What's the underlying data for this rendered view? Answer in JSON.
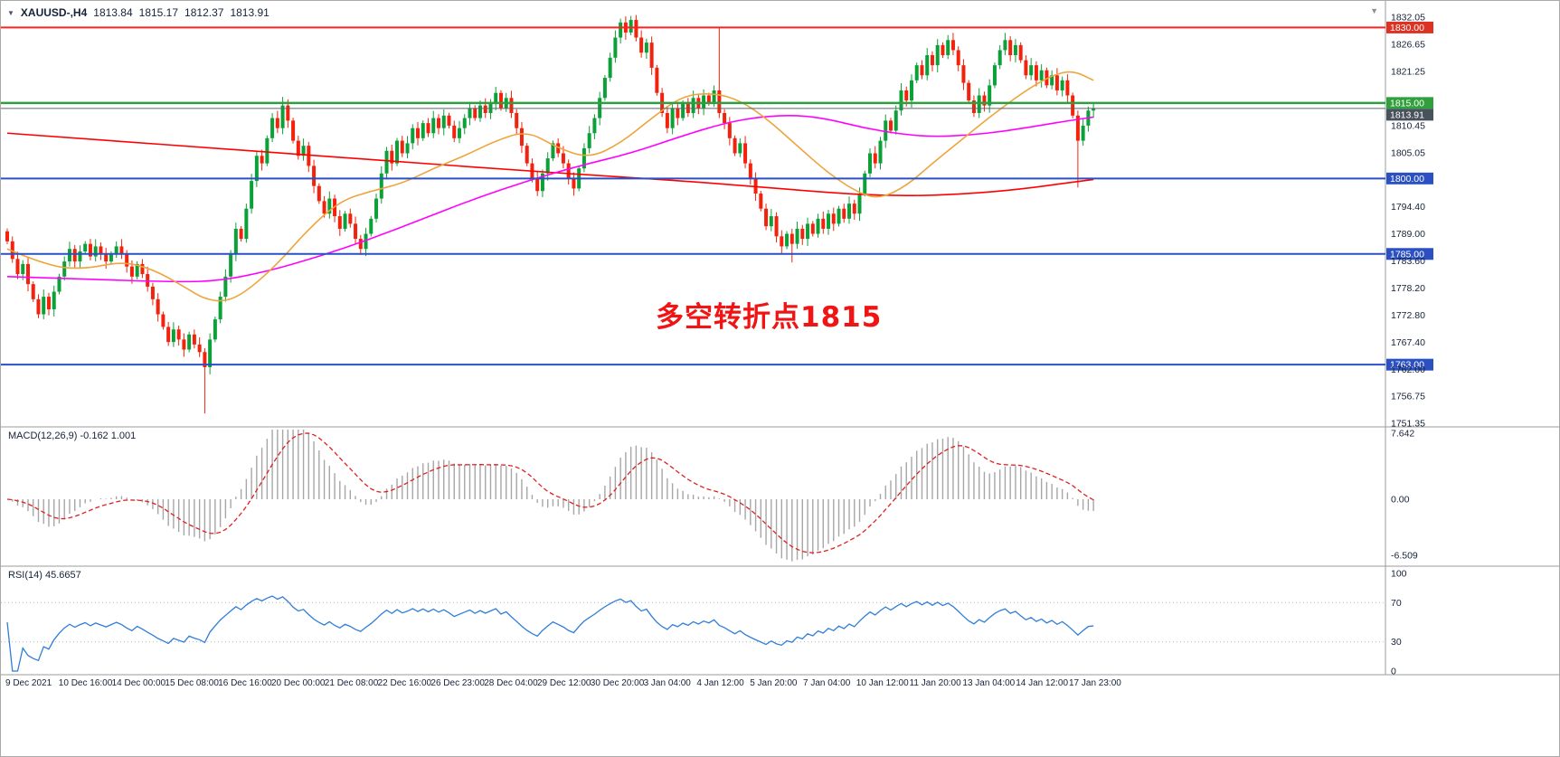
{
  "header": {
    "collapse_icon": "▼",
    "symbol_period": "XAUUSD-,H4",
    "open": "1813.84",
    "high": "1815.17",
    "low": "1812.37",
    "close": "1813.91"
  },
  "annotation": {
    "text": "多空转折点1815",
    "color": "#f01414"
  },
  "colors": {
    "bull": "#0CA138",
    "bear": "#F3220D",
    "ma_red": "#FF0000",
    "ma_magenta": "#FF00FF",
    "ma_orange": "#EDA53C",
    "level_red": "#FF2020",
    "level_green": "#2F9E41",
    "level_blue": "#2A50C2",
    "current_price": "#5A646E",
    "macd_hist": "#A6A6A6",
    "macd_signal": "#E02020",
    "rsi_line": "#2F7ED8",
    "rsi_levels": "#b8bdc4",
    "axis_text": "#152238",
    "separator": "#9b9b9b"
  },
  "price_axis": {
    "labels": [
      {
        "text": "1832.05",
        "price": 1832.05
      },
      {
        "text": "1830.00",
        "price": 1830.0,
        "badge": "#DD3222"
      },
      {
        "text": "1826.65",
        "price": 1826.65
      },
      {
        "text": "1821.25",
        "price": 1821.25
      },
      {
        "text": "1815.00",
        "price": 1815.0,
        "badge": "#2FA03C"
      },
      {
        "text": "1813.91",
        "price": 1813.91,
        "badge": "#48525C"
      },
      {
        "text": "1810.45",
        "price": 1810.45
      },
      {
        "text": "1805.05",
        "price": 1805.05
      },
      {
        "text": "1800.00",
        "price": 1800.0,
        "badge": "#2A50C2"
      },
      {
        "text": "1794.40",
        "price": 1794.4
      },
      {
        "text": "1789.00",
        "price": 1789.0
      },
      {
        "text": "1785.00",
        "price": 1785.0,
        "badge": "#2A50C2"
      },
      {
        "text": "1783.60",
        "price": 1783.6
      },
      {
        "text": "1778.20",
        "price": 1778.2
      },
      {
        "text": "1772.80",
        "price": 1772.8
      },
      {
        "text": "1767.40",
        "price": 1767.4
      },
      {
        "text": "1763.00",
        "price": 1763.0,
        "badge": "#2A50C2"
      },
      {
        "text": "1762.00",
        "price": 1762.0
      },
      {
        "text": "1756.75",
        "price": 1756.75
      },
      {
        "text": "1751.35",
        "price": 1751.35
      }
    ]
  },
  "time_axis": {
    "labels": [
      "9 Dec 2021",
      "10 Dec 16:00",
      "14 Dec 00:00",
      "15 Dec 08:00",
      "16 Dec 16:00",
      "20 Dec 00:00",
      "21 Dec 08:00",
      "22 Dec 16:00",
      "26 Dec 23:00",
      "28 Dec 04:00",
      "29 Dec 12:00",
      "30 Dec 20:00",
      "3 Jan 04:00",
      "4 Jan 12:00",
      "5 Jan 20:00",
      "7 Jan 04:00",
      "10 Jan 12:00",
      "11 Jan 20:00",
      "13 Jan 04:00",
      "14 Jan 12:00",
      "17 Jan 23:00"
    ]
  },
  "levels": [
    {
      "price": 1830.0,
      "color_key": "level_red",
      "width": 2
    },
    {
      "price": 1815.0,
      "color_key": "level_green",
      "width": 2.5
    },
    {
      "price": 1813.91,
      "color_key": "current_price",
      "width": 1
    },
    {
      "price": 1800.0,
      "color_key": "level_blue",
      "width": 2
    },
    {
      "price": 1785.0,
      "color_key": "level_blue",
      "width": 2
    },
    {
      "price": 1763.0,
      "color_key": "level_blue",
      "width": 2
    }
  ],
  "panels": {
    "macd": {
      "label": "MACD(12,26,9)",
      "values": "-0.162 1.001",
      "fast": 12,
      "slow": 26,
      "signal": 9,
      "axis": [
        {
          "text": "7.642",
          "value": 7.642
        },
        {
          "text": "0.00",
          "value": 0
        },
        {
          "text": "-6.509",
          "value": -6.509
        }
      ]
    },
    "rsi": {
      "label": "RSI(14)",
      "value": "45.6657",
      "period": 14,
      "axis": [
        {
          "text": "100",
          "value": 100
        },
        {
          "text": "70",
          "value": 70
        },
        {
          "text": "30",
          "value": 30
        },
        {
          "text": "0",
          "value": 0
        }
      ],
      "level_lines": [
        30,
        70
      ]
    }
  },
  "chart_data": {
    "type": "candlestick",
    "title": "XAUUSD- H4",
    "ylim": [
      1751.35,
      1832.05
    ],
    "x_labels": [
      "9 Dec 2021",
      "10 Dec 16:00",
      "14 Dec 00:00",
      "15 Dec 08:00",
      "16 Dec 16:00",
      "20 Dec 00:00",
      "21 Dec 08:00",
      "22 Dec 16:00",
      "26 Dec 23:00",
      "28 Dec 04:00",
      "29 Dec 12:00",
      "30 Dec 20:00",
      "3 Jan 04:00",
      "4 Jan 12:00",
      "5 Jan 20:00",
      "7 Jan 04:00",
      "10 Jan 12:00",
      "11 Jan 20:00",
      "13 Jan 04:00",
      "14 Jan 12:00",
      "17 Jan 23:00"
    ],
    "candles": {
      "first_open": 1789.5,
      "default_wick": 1.1,
      "closes": [
        1787.5,
        1784,
        1781,
        1783,
        1779,
        1776,
        1773,
        1776.5,
        1774,
        1777.5,
        1780.5,
        1783.5,
        1786,
        1783.5,
        1785.5,
        1787,
        1784.5,
        1786.5,
        1785,
        1783.5,
        1785,
        1786.5,
        1785,
        1782.5,
        1780.5,
        1783,
        1781,
        1778.5,
        1776,
        1773,
        1770.5,
        1767.5,
        1770,
        1768,
        1766,
        1769,
        1767,
        1765.5,
        1762.5,
        1768,
        1772,
        1776.5,
        1780.5,
        1785,
        1790,
        1788,
        1794,
        1799.5,
        1804.5,
        1803,
        1808,
        1812,
        1810,
        1814.5,
        1811.5,
        1807.5,
        1804.5,
        1806.5,
        1802.5,
        1798.5,
        1795.5,
        1793,
        1796,
        1792.5,
        1790,
        1793,
        1791,
        1788,
        1786,
        1789,
        1792,
        1796,
        1801,
        1805.5,
        1803,
        1807.5,
        1805,
        1807,
        1810,
        1808,
        1811,
        1809,
        1812,
        1810,
        1812.5,
        1810.5,
        1808,
        1810,
        1812,
        1814,
        1812,
        1814.5,
        1813,
        1815,
        1817,
        1814,
        1816,
        1813,
        1810,
        1806.5,
        1803,
        1800,
        1797.5,
        1801,
        1804,
        1807,
        1805,
        1803,
        1800,
        1798,
        1802,
        1806,
        1809,
        1812,
        1816,
        1820,
        1824,
        1828,
        1831,
        1829,
        1831.5,
        1828,
        1825,
        1827,
        1822,
        1817,
        1813,
        1810,
        1814,
        1812,
        1815,
        1813,
        1816,
        1814,
        1816.5,
        1815,
        1817.5,
        1813,
        1811,
        1808,
        1805,
        1807,
        1803,
        1800,
        1797,
        1794,
        1790.5,
        1792.5,
        1788.5,
        1786.5,
        1789,
        1787,
        1790,
        1788,
        1791,
        1789,
        1792,
        1790,
        1793,
        1791,
        1794,
        1792,
        1795,
        1793,
        1797,
        1801,
        1805,
        1803,
        1807.5,
        1811.5,
        1809.5,
        1813.5,
        1817.5,
        1815.5,
        1819.5,
        1822.5,
        1820.5,
        1824.5,
        1822.5,
        1826.5,
        1824.5,
        1827.5,
        1825.5,
        1822.5,
        1819,
        1815.5,
        1813,
        1816.5,
        1814.5,
        1818.5,
        1822.5,
        1825.5,
        1827.5,
        1824.5,
        1826.5,
        1823.5,
        1820.5,
        1822.5,
        1819.5,
        1821.5,
        1818.5,
        1820.5,
        1817.5,
        1819.5,
        1816.5,
        1812.5,
        1807.5,
        1810.5,
        1813.5,
        1813.91
      ],
      "wick_overrides": {
        "38": {
          "low": 1753.3
        },
        "53": {
          "high": 1816.2
        },
        "120": {
          "high": 1832.3
        },
        "137": {
          "high": 1830.0
        },
        "151": {
          "low": 1783.3
        },
        "206": {
          "low": 1798.2
        }
      }
    },
    "moving_averages": [
      {
        "name": "slow",
        "color_key": "ma_red",
        "points": [
          [
            0,
            1809
          ],
          [
            20,
            1807.5
          ],
          [
            40,
            1806
          ],
          [
            60,
            1804.5
          ],
          [
            80,
            1803
          ],
          [
            100,
            1801.5
          ],
          [
            115,
            1800.5
          ],
          [
            130,
            1799.5
          ],
          [
            145,
            1798.3
          ],
          [
            158,
            1797.2
          ],
          [
            168,
            1796.6
          ],
          [
            178,
            1796.6
          ],
          [
            188,
            1797.2
          ],
          [
            196,
            1798
          ],
          [
            203,
            1799
          ],
          [
            209,
            1799.8
          ]
        ]
      },
      {
        "name": "medium",
        "color_key": "ma_magenta",
        "points": [
          [
            0,
            1780.5
          ],
          [
            15,
            1780
          ],
          [
            30,
            1779.5
          ],
          [
            40,
            1779.5
          ],
          [
            50,
            1781.5
          ],
          [
            60,
            1784.5
          ],
          [
            70,
            1788
          ],
          [
            80,
            1792
          ],
          [
            90,
            1796
          ],
          [
            100,
            1799.5
          ],
          [
            110,
            1802.5
          ],
          [
            120,
            1805
          ],
          [
            130,
            1808.5
          ],
          [
            138,
            1811
          ],
          [
            145,
            1812.3
          ],
          [
            152,
            1812.6
          ],
          [
            158,
            1811.8
          ],
          [
            165,
            1810
          ],
          [
            172,
            1808.8
          ],
          [
            178,
            1808.3
          ],
          [
            185,
            1808.6
          ],
          [
            192,
            1809.4
          ],
          [
            199,
            1810.6
          ],
          [
            205,
            1811.6
          ],
          [
            209,
            1812.2
          ]
        ]
      },
      {
        "name": "fast",
        "color_key": "ma_orange",
        "points": [
          [
            0,
            1786
          ],
          [
            8,
            1782.5
          ],
          [
            15,
            1782
          ],
          [
            22,
            1783.5
          ],
          [
            28,
            1782
          ],
          [
            34,
            1778.5
          ],
          [
            38,
            1776
          ],
          [
            42,
            1775.5
          ],
          [
            46,
            1777.5
          ],
          [
            52,
            1783
          ],
          [
            58,
            1790
          ],
          [
            64,
            1795.5
          ],
          [
            70,
            1797.5
          ],
          [
            76,
            1799
          ],
          [
            82,
            1802
          ],
          [
            88,
            1804.5
          ],
          [
            94,
            1807.5
          ],
          [
            100,
            1809.5
          ],
          [
            106,
            1806
          ],
          [
            112,
            1804
          ],
          [
            118,
            1807
          ],
          [
            124,
            1812
          ],
          [
            130,
            1816.5
          ],
          [
            136,
            1817
          ],
          [
            141,
            1815.5
          ],
          [
            146,
            1812
          ],
          [
            152,
            1806.5
          ],
          [
            158,
            1801
          ],
          [
            164,
            1797
          ],
          [
            168,
            1796
          ],
          [
            173,
            1798.5
          ],
          [
            178,
            1803
          ],
          [
            184,
            1808
          ],
          [
            190,
            1813
          ],
          [
            196,
            1817.5
          ],
          [
            201,
            1820.5
          ],
          [
            205,
            1821.5
          ],
          [
            209,
            1819.5
          ]
        ]
      }
    ],
    "indicators": {
      "macd": {
        "fast": 12,
        "slow": 26,
        "signal": 9,
        "current_macd": -0.162,
        "current_signal": 1.001
      },
      "rsi": {
        "period": 14,
        "current": 45.6657
      }
    }
  }
}
